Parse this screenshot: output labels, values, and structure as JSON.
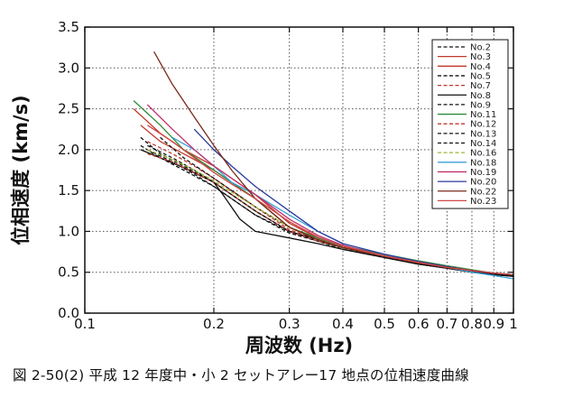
{
  "chart_data": {
    "type": "line",
    "xlabel": "周波数 (Hz)",
    "ylabel": "位相速度 (km/s)",
    "xscale": "log",
    "xlim": [
      0.1,
      1
    ],
    "ylim": [
      0,
      3.5
    ],
    "x_ticks": [
      0.1,
      0.2,
      0.3,
      0.4,
      0.5,
      0.6,
      0.7,
      0.8,
      0.9,
      1
    ],
    "x_tick_labels": [
      "0.1",
      "0.2",
      "0.3",
      "0.4",
      "0.5",
      "0.6",
      "0.7",
      "0.8",
      "0.9",
      "1"
    ],
    "y_ticks": [
      0,
      0.5,
      1.0,
      1.5,
      2.0,
      2.5,
      3.0,
      3.5
    ],
    "y_tick_labels": [
      "0.0",
      "0.5",
      "1.0",
      "1.5",
      "2.0",
      "2.5",
      "3.0",
      "3.5"
    ],
    "grid": true,
    "legend_position": "top-right",
    "series": [
      {
        "name": "No.2",
        "color": "#111111",
        "dash": true,
        "x": [
          0.135,
          0.15,
          0.17,
          0.2,
          0.22,
          0.25,
          0.3,
          0.35,
          0.4,
          0.5,
          0.6,
          0.7,
          0.8,
          0.9,
          1.0
        ],
        "y": [
          2.15,
          1.95,
          1.8,
          1.6,
          1.45,
          1.25,
          1.0,
          0.9,
          0.8,
          0.68,
          0.6,
          0.55,
          0.5,
          0.47,
          0.45
        ]
      },
      {
        "name": "No.3",
        "color": "#c0392b",
        "dash": false,
        "x": [
          0.13,
          0.15,
          0.17,
          0.2,
          0.22,
          0.25,
          0.3,
          0.35,
          0.4,
          0.5,
          0.6,
          0.7,
          0.8,
          0.9,
          1.0
        ],
        "y": [
          2.5,
          2.2,
          2.0,
          1.8,
          1.65,
          1.45,
          1.1,
          0.92,
          0.82,
          0.7,
          0.62,
          0.56,
          0.52,
          0.48,
          0.46
        ]
      },
      {
        "name": "No.4",
        "color": "#c0392b",
        "dash": false,
        "x": [
          0.135,
          0.15,
          0.17,
          0.2,
          0.22,
          0.25,
          0.3,
          0.35,
          0.4,
          0.5,
          0.6,
          0.7,
          0.8,
          0.9,
          1.0
        ],
        "y": [
          2.3,
          2.1,
          1.95,
          1.75,
          1.6,
          1.4,
          1.05,
          0.9,
          0.8,
          0.69,
          0.61,
          0.55,
          0.51,
          0.48,
          0.45
        ]
      },
      {
        "name": "No.5",
        "color": "#111111",
        "dash": true,
        "x": [
          0.135,
          0.15,
          0.17,
          0.2,
          0.22,
          0.25,
          0.3,
          0.35,
          0.4,
          0.5,
          0.6,
          0.7,
          0.8,
          0.9,
          1.0
        ],
        "y": [
          2.05,
          1.9,
          1.75,
          1.55,
          1.4,
          1.2,
          0.98,
          0.88,
          0.78,
          0.68,
          0.6,
          0.55,
          0.5,
          0.47,
          0.45
        ]
      },
      {
        "name": "No.7",
        "color": "#c0392b",
        "dash": true,
        "x": [
          0.14,
          0.16,
          0.18,
          0.2,
          0.22,
          0.25,
          0.3,
          0.35,
          0.4,
          0.5,
          0.6,
          0.7,
          0.8,
          0.9,
          1.0
        ],
        "y": [
          2.1,
          1.95,
          1.8,
          1.65,
          1.5,
          1.3,
          1.02,
          0.9,
          0.8,
          0.7,
          0.62,
          0.56,
          0.52,
          0.48,
          0.46
        ]
      },
      {
        "name": "No.8",
        "color": "#111111",
        "dash": false,
        "x": [
          0.135,
          0.15,
          0.17,
          0.2,
          0.21,
          0.23,
          0.25,
          0.3,
          0.35,
          0.4,
          0.5,
          0.6,
          0.7,
          0.8,
          0.9,
          1.0
        ],
        "y": [
          2.0,
          1.9,
          1.78,
          1.6,
          1.45,
          1.15,
          1.0,
          0.92,
          0.85,
          0.78,
          0.68,
          0.6,
          0.55,
          0.5,
          0.47,
          0.45
        ]
      },
      {
        "name": "No.9",
        "color": "#111111",
        "dash": true,
        "x": [
          0.14,
          0.16,
          0.18,
          0.2,
          0.22,
          0.25,
          0.3,
          0.35,
          0.4,
          0.5,
          0.6,
          0.7,
          0.8,
          0.9,
          1.0
        ],
        "y": [
          2.0,
          1.85,
          1.7,
          1.55,
          1.4,
          1.2,
          1.0,
          0.88,
          0.8,
          0.7,
          0.62,
          0.56,
          0.51,
          0.48,
          0.46
        ]
      },
      {
        "name": "No.11",
        "color": "#2e8b3a",
        "dash": false,
        "x": [
          0.13,
          0.15,
          0.17,
          0.2,
          0.22,
          0.25,
          0.3,
          0.35,
          0.4,
          0.5,
          0.6,
          0.7,
          0.8,
          0.9,
          1.0
        ],
        "y": [
          2.6,
          2.3,
          2.0,
          1.75,
          1.6,
          1.4,
          1.05,
          0.92,
          0.82,
          0.72,
          0.64,
          0.58,
          0.53,
          0.49,
          0.47
        ]
      },
      {
        "name": "No.12",
        "color": "#c0392b",
        "dash": true,
        "x": [
          0.14,
          0.16,
          0.18,
          0.2,
          0.22,
          0.25,
          0.3,
          0.35,
          0.4,
          0.5,
          0.6,
          0.7,
          0.8,
          0.9,
          1.0
        ],
        "y": [
          1.95,
          1.85,
          1.72,
          1.6,
          1.45,
          1.25,
          1.0,
          0.88,
          0.8,
          0.7,
          0.62,
          0.56,
          0.52,
          0.49,
          0.47
        ]
      },
      {
        "name": "No.13",
        "color": "#111111",
        "dash": true,
        "x": [
          0.15,
          0.17,
          0.2,
          0.22,
          0.25,
          0.3,
          0.35,
          0.4,
          0.5,
          0.6,
          0.7,
          0.8,
          0.9,
          1.0
        ],
        "y": [
          2.15,
          1.9,
          1.65,
          1.5,
          1.3,
          1.05,
          0.9,
          0.8,
          0.7,
          0.62,
          0.56,
          0.52,
          0.48,
          0.46
        ]
      },
      {
        "name": "No.14",
        "color": "#111111",
        "dash": true,
        "x": [
          0.14,
          0.16,
          0.18,
          0.2,
          0.22,
          0.25,
          0.3,
          0.35,
          0.4,
          0.5,
          0.6,
          0.7,
          0.8,
          0.9,
          1.0
        ],
        "y": [
          2.05,
          1.9,
          1.75,
          1.6,
          1.45,
          1.25,
          1.0,
          0.9,
          0.8,
          0.7,
          0.62,
          0.57,
          0.52,
          0.48,
          0.46
        ]
      },
      {
        "name": "No.16",
        "color": "#9ab832",
        "dash": true,
        "x": [
          0.14,
          0.16,
          0.18,
          0.2,
          0.22,
          0.25,
          0.3,
          0.35,
          0.4,
          0.5,
          0.6,
          0.7,
          0.8,
          0.9,
          1.0
        ],
        "y": [
          2.0,
          1.88,
          1.75,
          1.62,
          1.48,
          1.3,
          1.05,
          0.9,
          0.8,
          0.7,
          0.62,
          0.57,
          0.52,
          0.49,
          0.47
        ]
      },
      {
        "name": "No.18",
        "color": "#3aa0d8",
        "dash": false,
        "x": [
          0.16,
          0.18,
          0.2,
          0.22,
          0.25,
          0.3,
          0.35,
          0.4,
          0.5,
          0.6,
          0.7,
          0.8,
          0.9,
          1.0
        ],
        "y": [
          2.15,
          2.0,
          1.8,
          1.6,
          1.45,
          1.2,
          1.0,
          0.85,
          0.72,
          0.63,
          0.56,
          0.5,
          0.46,
          0.42
        ]
      },
      {
        "name": "No.19",
        "color": "#c0306a",
        "dash": false,
        "x": [
          0.14,
          0.16,
          0.18,
          0.2,
          0.22,
          0.25,
          0.3,
          0.35,
          0.4,
          0.5,
          0.6,
          0.7,
          0.8,
          0.9,
          1.0
        ],
        "y": [
          2.55,
          2.25,
          2.0,
          1.8,
          1.65,
          1.45,
          1.15,
          0.95,
          0.83,
          0.7,
          0.62,
          0.56,
          0.52,
          0.49,
          0.47
        ]
      },
      {
        "name": "No.20",
        "color": "#2b3a9a",
        "dash": false,
        "x": [
          0.18,
          0.2,
          0.22,
          0.25,
          0.3,
          0.35,
          0.4,
          0.5,
          0.6,
          0.7,
          0.8,
          0.9,
          1.0
        ],
        "y": [
          2.25,
          2.0,
          1.8,
          1.55,
          1.25,
          1.0,
          0.85,
          0.72,
          0.63,
          0.57,
          0.52,
          0.49,
          0.47
        ]
      },
      {
        "name": "No.22",
        "color": "#7a2a1a",
        "dash": false,
        "x": [
          0.145,
          0.16,
          0.18,
          0.2,
          0.22,
          0.25,
          0.3,
          0.35,
          0.4,
          0.5,
          0.6,
          0.7,
          0.8,
          0.9,
          1.0
        ],
        "y": [
          3.2,
          2.8,
          2.4,
          2.05,
          1.75,
          1.4,
          1.05,
          0.9,
          0.8,
          0.7,
          0.62,
          0.56,
          0.52,
          0.49,
          0.47
        ]
      },
      {
        "name": "No.23",
        "color": "#d04848",
        "dash": false,
        "x": [
          0.14,
          0.16,
          0.18,
          0.2,
          0.22,
          0.25,
          0.3,
          0.35,
          0.4,
          0.5,
          0.6,
          0.7,
          0.8,
          0.9,
          1.0
        ],
        "y": [
          2.3,
          2.1,
          1.9,
          1.72,
          1.58,
          1.4,
          1.12,
          0.93,
          0.82,
          0.7,
          0.62,
          0.56,
          0.52,
          0.49,
          0.47
        ]
      }
    ]
  },
  "caption": "図 2-50(2)  平成 12 年度中・小 2 セットアレー17 地点の位相速度曲線"
}
